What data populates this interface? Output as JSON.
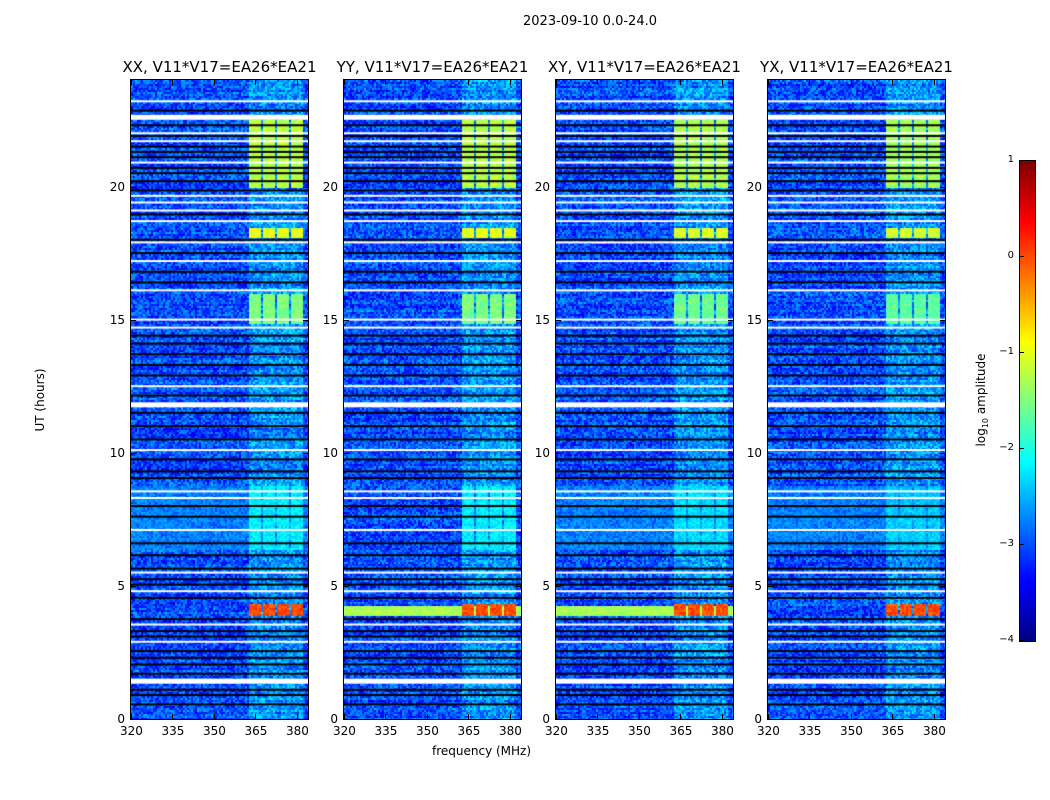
{
  "chart_data": {
    "type": "heatmap",
    "title": "2023-09-10 0.0-24.0",
    "xlabel": "frequency (MHz)",
    "ylabel": "UT (hours)",
    "xlim": [
      320,
      384
    ],
    "ylim": [
      0,
      24
    ],
    "xticks": [
      320,
      335,
      350,
      365,
      380
    ],
    "yticks": [
      0,
      5,
      10,
      15,
      20
    ],
    "panels": [
      {
        "title": "XX, V11*V17=EA26*EA21",
        "rfi_strength": 1.0,
        "band_4h_broad": false
      },
      {
        "title": "YY, V11*V17=EA26*EA21",
        "rfi_strength": 1.0,
        "band_4h_broad": true
      },
      {
        "title": "XY, V11*V17=EA26*EA21",
        "rfi_strength": 0.95,
        "band_4h_broad": true
      },
      {
        "title": "YX, V11*V17=EA26*EA21",
        "rfi_strength": 0.9,
        "band_4h_broad": false
      }
    ],
    "colorbar": {
      "label": "log10 amplitude",
      "label_main": "log",
      "label_sub": "10",
      "label_rest": " amplitude",
      "range": [
        -4,
        1
      ],
      "ticks": [
        1,
        0,
        -1,
        -2,
        -3,
        -4
      ],
      "tick_labels": [
        "1",
        "0",
        "−1",
        "−2",
        "−3",
        "−4"
      ],
      "colormap": "jet"
    },
    "background_log_amplitude": -3.0,
    "rfi_channels_mhz": [
      [
        362,
        366.5
      ],
      [
        367.5,
        371.5
      ],
      [
        372.5,
        376.5
      ],
      [
        377.5,
        381.5
      ]
    ],
    "rfi_events": [
      {
        "hours": [
          3.9,
          4.35
        ],
        "log_amplitude": 0.0
      },
      {
        "hours": [
          14.9,
          16.0
        ],
        "log_amplitude": -1.5
      },
      {
        "hours": [
          18.1,
          18.5
        ],
        "log_amplitude": -1.0
      },
      {
        "hours": [
          20.0,
          22.5
        ],
        "log_amplitude": -1.2
      },
      {
        "hours": [
          6.4,
          8.8
        ],
        "log_amplitude": -2.2
      }
    ],
    "flagged_hours_white": [
      1.42,
      2.9,
      3.55,
      4.8,
      5.5,
      7.1,
      8.3,
      8.55,
      10.1,
      11.8,
      12.5,
      14.7,
      15.0,
      16.1,
      17.2,
      17.9,
      18.7,
      19.1,
      19.4,
      19.65,
      20.9,
      21.7,
      22.0,
      22.6,
      23.2
    ],
    "flagged_hours_black": [
      0.55,
      0.9,
      1.1,
      1.7,
      2.05,
      2.3,
      2.55,
      3.1,
      3.3,
      3.75,
      4.55,
      5.05,
      5.25,
      5.65,
      6.15,
      6.6,
      7.6,
      8.0,
      9.05,
      9.3,
      9.75,
      10.5,
      11.0,
      11.5,
      12.15,
      12.9,
      13.3,
      13.7,
      14.1,
      14.4,
      16.4,
      16.8,
      17.5,
      18.0,
      18.95,
      19.85,
      20.2,
      20.5,
      20.7,
      21.1,
      21.3,
      21.5,
      21.9,
      22.3,
      22.85
    ]
  }
}
